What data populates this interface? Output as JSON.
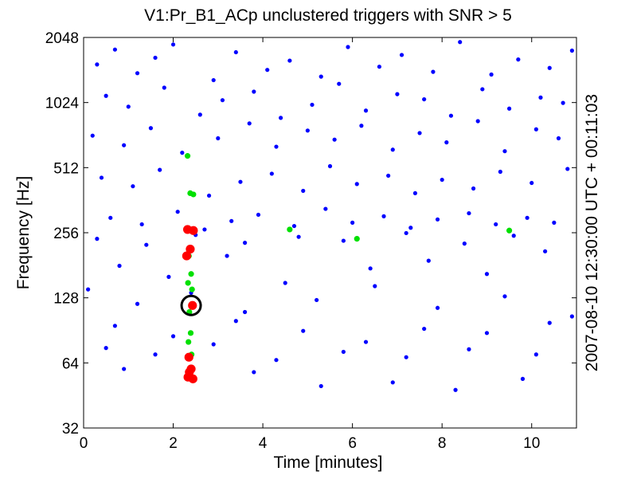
{
  "chart_data": {
    "type": "scatter",
    "title": "V1:Pr_B1_ACp unclustered triggers with SNR > 5",
    "xlabel": "Time [minutes]",
    "ylabel": "Frequency [Hz]",
    "right_label": "2007-08-10 12:30:00 UTC + 00:11:03",
    "xlim": [
      0,
      11
    ],
    "ylim": [
      32,
      2048
    ],
    "yscale": "log2",
    "x_ticks": [
      0,
      2,
      4,
      6,
      8,
      10
    ],
    "y_ticks": [
      32,
      64,
      128,
      256,
      512,
      1024,
      2048
    ],
    "colors": {
      "low_snr": "#0000ff",
      "mid_snr": "#00e000",
      "high_snr": "#ff0000",
      "marker_ring": "#000000"
    },
    "series": [
      {
        "color": "#0000ff",
        "x": [
          0.3,
          0.7,
          1.2,
          1.6,
          2.0,
          2.9,
          3.4,
          4.1,
          4.6,
          5.3,
          5.9,
          6.6,
          7.1,
          7.8,
          8.4,
          9.1,
          9.7,
          10.4,
          10.9,
          0.5,
          1.0,
          1.8,
          2.6,
          3.1,
          3.8,
          4.4,
          5.1,
          5.7,
          6.3,
          7.0,
          7.6,
          8.2,
          8.9,
          9.5,
          10.2,
          10.7,
          0.2,
          0.9,
          1.5,
          2.2,
          3.0,
          3.7,
          4.3,
          5.0,
          5.6,
          6.2,
          6.9,
          7.5,
          8.1,
          8.8,
          9.4,
          10.1,
          10.6,
          0.4,
          1.1,
          1.7,
          2.8,
          3.5,
          4.2,
          4.9,
          5.5,
          6.1,
          6.8,
          7.4,
          8.0,
          8.7,
          9.3,
          10.0,
          10.8,
          0.6,
          1.3,
          2.1,
          2.7,
          3.3,
          3.9,
          4.7,
          5.4,
          6.0,
          6.7,
          7.3,
          7.9,
          8.6,
          9.2,
          9.9,
          10.5,
          0.3,
          1.4,
          2.5,
          3.6,
          4.8,
          5.8,
          7.2,
          8.5,
          9.6,
          0.8,
          1.9,
          3.2,
          4.5,
          6.4,
          7.7,
          9.0,
          10.3,
          0.1,
          1.2,
          2.4,
          3.6,
          5.2,
          6.5,
          7.9,
          9.4,
          10.9,
          0.7,
          2.0,
          3.4,
          4.9,
          6.3,
          7.6,
          9.0,
          10.4,
          0.5,
          1.6,
          2.9,
          4.3,
          5.8,
          7.2,
          8.6,
          10.1,
          0.9,
          2.3,
          3.8,
          5.3,
          6.9,
          8.3,
          9.8
        ],
        "y": [
          1536,
          1800,
          1400,
          1650,
          1900,
          1300,
          1750,
          1450,
          1600,
          1350,
          1850,
          1500,
          1700,
          1420,
          1950,
          1380,
          1620,
          1480,
          1780,
          1100,
          980,
          1200,
          900,
          1050,
          1150,
          870,
          1000,
          1250,
          940,
          1120,
          1060,
          890,
          1180,
          960,
          1080,
          1020,
          720,
          650,
          780,
          600,
          700,
          820,
          640,
          760,
          690,
          800,
          620,
          740,
          670,
          840,
          610,
          770,
          700,
          460,
          420,
          500,
          380,
          440,
          480,
          400,
          520,
          430,
          470,
          390,
          450,
          410,
          490,
          435,
          505,
          300,
          280,
          320,
          265,
          290,
          310,
          275,
          330,
          285,
          305,
          270,
          295,
          315,
          280,
          300,
          285,
          240,
          225,
          250,
          230,
          245,
          235,
          255,
          228,
          248,
          180,
          160,
          200,
          150,
          175,
          190,
          165,
          210,
          140,
          120,
          135,
          110,
          125,
          145,
          115,
          130,
          105,
          95,
          85,
          100,
          90,
          80,
          92,
          88,
          98,
          75,
          70,
          78,
          66,
          72,
          68,
          74,
          70,
          60,
          55,
          58,
          50,
          52,
          48,
          54
        ],
        "r": 2.6
      },
      {
        "color": "#00e000",
        "x": [
          2.32,
          2.38,
          2.45,
          2.35,
          2.4,
          2.33,
          2.42,
          2.36,
          2.39,
          2.34,
          2.41,
          4.6,
          6.1,
          9.5
        ],
        "y": [
          580,
          390,
          385,
          200,
          165,
          150,
          140,
          110,
          88,
          80,
          70,
          265,
          240,
          262
        ],
        "r": 3.6
      },
      {
        "color": "#ff0000",
        "x": [
          2.32,
          2.45,
          2.38,
          2.3,
          2.43,
          2.35,
          2.4,
          2.36,
          2.33,
          2.44
        ],
        "y": [
          265,
          262,
          215,
          200,
          118,
          68,
          60,
          58,
          55,
          54
        ],
        "r": 5.6
      }
    ],
    "highlight": {
      "x": 2.4,
      "y": 118
    }
  }
}
